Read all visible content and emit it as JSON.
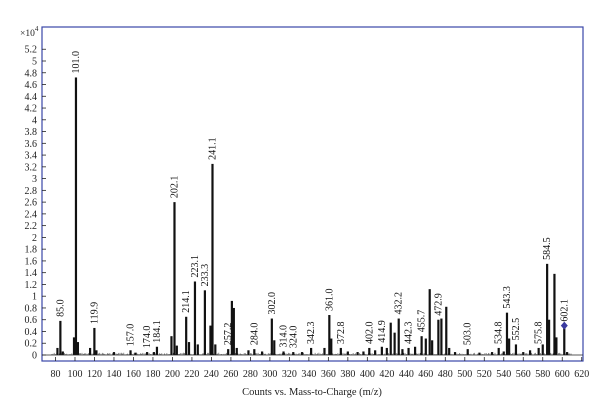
{
  "chart_data": {
    "type": "bar",
    "xlabel": "Counts vs. Mass-to-Charge (m/z)",
    "ylabel_multiplier": "×10",
    "ylabel_exponent": "4",
    "xlim": [
      72,
      624
    ],
    "ylim": [
      0,
      5.45
    ],
    "xticks": [
      "80",
      "100",
      "120",
      "140",
      "160",
      "180",
      "200",
      "220",
      "240",
      "260",
      "280",
      "300",
      "320",
      "340",
      "360",
      "380",
      "400",
      "420",
      "440",
      "460",
      "480",
      "500",
      "520",
      "540",
      "560",
      "580",
      "600",
      "620"
    ],
    "yticks": [
      "0",
      "0.2",
      "0.4",
      "0.6",
      "0.8",
      "1",
      "1.2",
      "1.4",
      "1.6",
      "1.8",
      "2",
      "2.2",
      "2.4",
      "2.6",
      "2.8",
      "3",
      "3.2",
      "3.4",
      "3.6",
      "3.8",
      "4",
      "4.2",
      "4.4",
      "4.6",
      "4.8",
      "5",
      "5.2"
    ],
    "colors": {
      "bar": "#111111",
      "frame": "#3a46a8",
      "marker": "#3b3aa0"
    },
    "peaks": [
      {
        "x": 82.0,
        "y": 0.12
      },
      {
        "x": 85.0,
        "y": 0.58,
        "label": "85.0"
      },
      {
        "x": 87.5,
        "y": 0.06
      },
      {
        "x": 99.0,
        "y": 0.3
      },
      {
        "x": 101.0,
        "y": 4.72,
        "label": "101.0"
      },
      {
        "x": 103.0,
        "y": 0.22
      },
      {
        "x": 115.5,
        "y": 0.12
      },
      {
        "x": 119.9,
        "y": 0.46,
        "label": "119.9"
      },
      {
        "x": 122.0,
        "y": 0.08
      },
      {
        "x": 140.0,
        "y": 0.05
      },
      {
        "x": 157.0,
        "y": 0.08,
        "label": "157.0"
      },
      {
        "x": 162.0,
        "y": 0.04
      },
      {
        "x": 174.0,
        "y": 0.05,
        "label": "174.0"
      },
      {
        "x": 181.0,
        "y": 0.05
      },
      {
        "x": 184.1,
        "y": 0.14,
        "label": "184.1"
      },
      {
        "x": 199.0,
        "y": 0.32
      },
      {
        "x": 202.1,
        "y": 2.6,
        "label": "202.1"
      },
      {
        "x": 204.5,
        "y": 0.16
      },
      {
        "x": 214.1,
        "y": 0.65,
        "label": "214.1"
      },
      {
        "x": 217.0,
        "y": 0.22
      },
      {
        "x": 223.1,
        "y": 1.25,
        "label": "223.1"
      },
      {
        "x": 226.0,
        "y": 0.18
      },
      {
        "x": 233.3,
        "y": 1.1,
        "label": "233.3"
      },
      {
        "x": 239.0,
        "y": 0.5
      },
      {
        "x": 241.1,
        "y": 3.25,
        "label": "241.1"
      },
      {
        "x": 244.0,
        "y": 0.18
      },
      {
        "x": 257.2,
        "y": 0.1,
        "label": "257.2"
      },
      {
        "x": 261.0,
        "y": 0.92
      },
      {
        "x": 263.0,
        "y": 0.8
      },
      {
        "x": 266.0,
        "y": 0.12
      },
      {
        "x": 278.0,
        "y": 0.08
      },
      {
        "x": 284.0,
        "y": 0.1,
        "label": "284.0"
      },
      {
        "x": 292.0,
        "y": 0.06
      },
      {
        "x": 302.0,
        "y": 0.62,
        "label": "302.0"
      },
      {
        "x": 304.5,
        "y": 0.25
      },
      {
        "x": 314.0,
        "y": 0.06,
        "label": "314.0"
      },
      {
        "x": 324.0,
        "y": 0.05,
        "label": "324.0"
      },
      {
        "x": 333.0,
        "y": 0.05
      },
      {
        "x": 342.3,
        "y": 0.12,
        "label": "342.3"
      },
      {
        "x": 356.0,
        "y": 0.12
      },
      {
        "x": 361.0,
        "y": 0.68,
        "label": "361.0"
      },
      {
        "x": 363.0,
        "y": 0.28
      },
      {
        "x": 372.8,
        "y": 0.12,
        "label": "372.8"
      },
      {
        "x": 380.0,
        "y": 0.06
      },
      {
        "x": 390.0,
        "y": 0.05
      },
      {
        "x": 396.0,
        "y": 0.06
      },
      {
        "x": 402.0,
        "y": 0.12,
        "label": "402.0"
      },
      {
        "x": 408.0,
        "y": 0.08
      },
      {
        "x": 414.9,
        "y": 0.14,
        "label": "414.9"
      },
      {
        "x": 420.0,
        "y": 0.12
      },
      {
        "x": 424.0,
        "y": 0.55
      },
      {
        "x": 428.0,
        "y": 0.38
      },
      {
        "x": 432.2,
        "y": 0.62,
        "label": "432.2"
      },
      {
        "x": 436.0,
        "y": 0.1
      },
      {
        "x": 442.3,
        "y": 0.12,
        "label": "442.3"
      },
      {
        "x": 449.0,
        "y": 0.14
      },
      {
        "x": 455.7,
        "y": 0.32,
        "label": "455.7"
      },
      {
        "x": 460.0,
        "y": 0.28
      },
      {
        "x": 464.0,
        "y": 1.12
      },
      {
        "x": 466.5,
        "y": 0.25
      },
      {
        "x": 472.9,
        "y": 0.6,
        "label": "472.9"
      },
      {
        "x": 476.0,
        "y": 0.62
      },
      {
        "x": 481.0,
        "y": 0.82
      },
      {
        "x": 484.0,
        "y": 0.12
      },
      {
        "x": 490.0,
        "y": 0.05
      },
      {
        "x": 503.0,
        "y": 0.1,
        "label": "503.0"
      },
      {
        "x": 515.0,
        "y": 0.04
      },
      {
        "x": 528.0,
        "y": 0.05
      },
      {
        "x": 534.8,
        "y": 0.12,
        "label": "534.8"
      },
      {
        "x": 540.0,
        "y": 0.06
      },
      {
        "x": 543.3,
        "y": 0.72,
        "label": "543.3"
      },
      {
        "x": 545.5,
        "y": 0.28
      },
      {
        "x": 552.5,
        "y": 0.18,
        "label": "552.5"
      },
      {
        "x": 560.0,
        "y": 0.05
      },
      {
        "x": 567.0,
        "y": 0.08
      },
      {
        "x": 575.8,
        "y": 0.12,
        "label": "575.8"
      },
      {
        "x": 580.0,
        "y": 0.18
      },
      {
        "x": 584.5,
        "y": 1.55,
        "label": "584.5"
      },
      {
        "x": 586.5,
        "y": 0.6
      },
      {
        "x": 592.0,
        "y": 1.38
      },
      {
        "x": 594.0,
        "y": 0.3
      },
      {
        "x": 602.1,
        "y": 0.5,
        "label": "602.1",
        "marker": true
      },
      {
        "x": 605.0,
        "y": 0.05
      }
    ]
  }
}
